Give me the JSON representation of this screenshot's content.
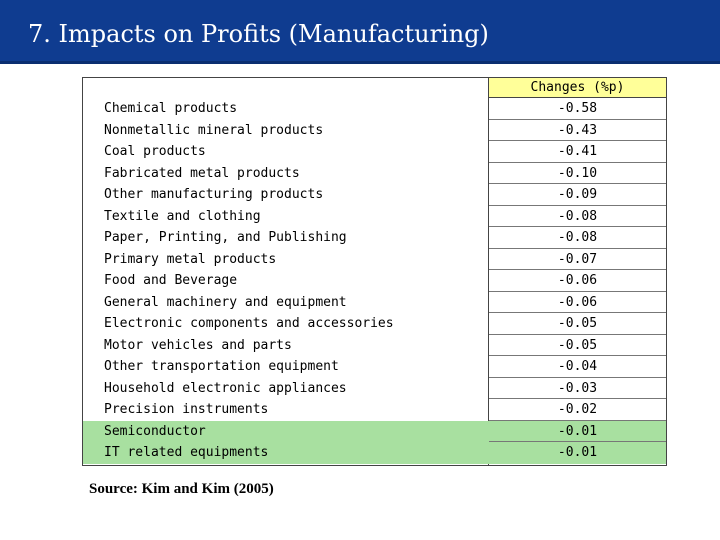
{
  "title": "7. Impacts on Profits (Manufacturing)",
  "table": {
    "value_header": "Changes (%p)",
    "rows": [
      {
        "name": "Chemical products",
        "value": "-0.58",
        "highlight": false
      },
      {
        "name": "Nonmetallic mineral products",
        "value": "-0.43",
        "highlight": false
      },
      {
        "name": "Coal products",
        "value": "-0.41",
        "highlight": false
      },
      {
        "name": "Fabricated metal products",
        "value": "-0.10",
        "highlight": false
      },
      {
        "name": "Other manufacturing products",
        "value": "-0.09",
        "highlight": false
      },
      {
        "name": "Textile and clothing",
        "value": "-0.08",
        "highlight": false
      },
      {
        "name": "Paper, Printing, and Publishing",
        "value": "-0.08",
        "highlight": false
      },
      {
        "name": "Primary metal products",
        "value": "-0.07",
        "highlight": false
      },
      {
        "name": "Food and Beverage",
        "value": "-0.06",
        "highlight": false
      },
      {
        "name": "General machinery and equipment",
        "value": "-0.06",
        "highlight": false
      },
      {
        "name": "Electronic components and accessories",
        "value": "-0.05",
        "highlight": false
      },
      {
        "name": "Motor vehicles and parts",
        "value": "-0.05",
        "highlight": false
      },
      {
        "name": "Other transportation equipment",
        "value": "-0.04",
        "highlight": false
      },
      {
        "name": "Household electronic appliances",
        "value": "-0.03",
        "highlight": false
      },
      {
        "name": "Precision instruments",
        "value": "-0.02",
        "highlight": false
      },
      {
        "name": "Semiconductor",
        "value": "-0.01",
        "highlight": true
      },
      {
        "name": "IT related equipments",
        "value": "-0.01",
        "highlight": true
      }
    ]
  },
  "source": "Source: Kim and Kim (2005)",
  "colors": {
    "title_bar": "#0f3c90",
    "header_fill": "#ffff99",
    "highlight_fill": "#a8e0a0"
  }
}
